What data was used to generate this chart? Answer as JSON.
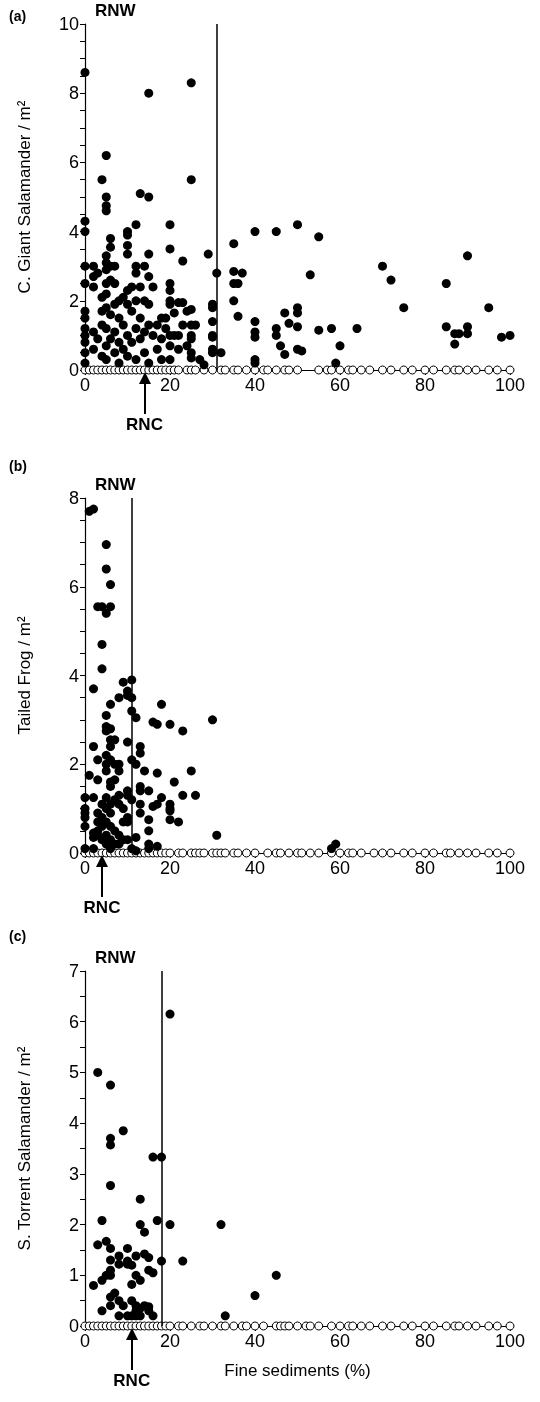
{
  "chart_data": [
    {
      "type": "scatter",
      "title": "(a)",
      "ylabel": "C. Giant Salamander / m²",
      "xlim": [
        0,
        100
      ],
      "xticks": [
        0,
        20,
        40,
        60,
        80,
        100
      ],
      "ylim": [
        0,
        10
      ],
      "yticks": [
        0,
        {
          "value": 0.5,
          "label": null
        },
        {
          "value": 1,
          "label": null
        },
        {
          "value": 1.5,
          "label": null
        },
        2,
        {
          "value": 2.5,
          "label": null
        },
        {
          "value": 3,
          "label": null
        },
        {
          "value": 3.5,
          "label": null
        },
        4,
        {
          "value": 4.5,
          "label": null
        },
        {
          "value": 5,
          "label": null
        },
        {
          "value": 5.5,
          "label": null
        },
        6,
        {
          "value": 6.5,
          "label": null
        },
        {
          "value": 7,
          "label": null
        },
        {
          "value": 7.5,
          "label": null
        },
        8,
        {
          "value": 8.5,
          "label": null
        },
        {
          "value": 9,
          "label": null
        },
        {
          "value": 9.5,
          "label": null
        },
        10
      ],
      "marker": "circle",
      "grid": false,
      "ref_lines": [
        {
          "axis": "x",
          "value": 31,
          "label": "RNW",
          "color": "#000000",
          "line_style": "solid"
        }
      ],
      "annotations": [
        {
          "text": "RNC",
          "x": 14,
          "y": 0
        }
      ],
      "series": [
        {
          "color": "#ffffff",
          "x": [
            0,
            1,
            2,
            3,
            4,
            5,
            6,
            7,
            8,
            9,
            10,
            11,
            12,
            13,
            14,
            15,
            16,
            17,
            18,
            19,
            20,
            21,
            22,
            24,
            25,
            26,
            28,
            30,
            32,
            33,
            35,
            36,
            38,
            40,
            42,
            43,
            45,
            47,
            48,
            50,
            55,
            57,
            58,
            60,
            62,
            63,
            65,
            67,
            70,
            72,
            75,
            77,
            80,
            82,
            85,
            87,
            88,
            90,
            92,
            95,
            97,
            100
          ],
          "values": [
            0,
            0,
            0,
            0,
            0,
            0,
            0,
            0,
            0,
            0,
            0,
            0,
            0,
            0,
            0,
            0,
            0,
            0,
            0,
            0,
            0,
            0,
            0,
            0,
            0,
            0,
            0,
            0,
            0,
            0,
            0,
            0,
            0,
            0,
            0,
            0,
            0,
            0,
            0,
            0,
            0,
            0,
            0,
            0,
            0,
            0,
            0,
            0,
            0,
            0,
            0,
            0,
            0,
            0,
            0,
            0,
            0,
            0,
            0,
            0,
            0,
            0
          ]
        },
        {
          "color": "#000000",
          "x": [
            0,
            15,
            25,
            25,
            5,
            4,
            5,
            5,
            5,
            13,
            15,
            0,
            0,
            10,
            10,
            10,
            12,
            20,
            20,
            6,
            6,
            15,
            23,
            29,
            31,
            35,
            35,
            37,
            35,
            36,
            35,
            36,
            40,
            45,
            50,
            55,
            53,
            40,
            40,
            40,
            40,
            40,
            45,
            45,
            46,
            47,
            47,
            48,
            50,
            50,
            50,
            50,
            51,
            55,
            58,
            60,
            59,
            64,
            70,
            72,
            75,
            85,
            85,
            87,
            87,
            88,
            90,
            90,
            90,
            95,
            98,
            100,
            30,
            30,
            30,
            30,
            30,
            30,
            30,
            32,
            23,
            25,
            20,
            20,
            20,
            20,
            21,
            23,
            25,
            26,
            25,
            25,
            22,
            27,
            28,
            25,
            25,
            0,
            0,
            0,
            0,
            0,
            0,
            0,
            0,
            0,
            2,
            2,
            2,
            2,
            2,
            3,
            3,
            4,
            4,
            4,
            4,
            5,
            5,
            5,
            5,
            5,
            5,
            5,
            5,
            5,
            6,
            6,
            6,
            6,
            7,
            7,
            7,
            7,
            7,
            8,
            8,
            8,
            8,
            9,
            9,
            9,
            10,
            10,
            10,
            10,
            10,
            11,
            11,
            11,
            12,
            12,
            12,
            12,
            12,
            13,
            13,
            13,
            14,
            14,
            14,
            14,
            15,
            15,
            15,
            15,
            16,
            16,
            17,
            17,
            18,
            18,
            18,
            19,
            19,
            20,
            20,
            20,
            21,
            22,
            22,
            24,
            24
          ],
          "values": [
            8.6,
            8.0,
            8.3,
            5.5,
            6.2,
            5.5,
            5.0,
            4.75,
            4.6,
            5.1,
            5.0,
            4.3,
            4.0,
            4.0,
            3.9,
            3.6,
            4.2,
            4.2,
            3.5,
            3.8,
            3.55,
            3.35,
            3.15,
            3.35,
            2.8,
            3.65,
            2.85,
            2.8,
            2.5,
            2.5,
            2.0,
            1.55,
            4.0,
            4.0,
            4.2,
            3.85,
            2.75,
            1.4,
            1.1,
            0.95,
            0.3,
            0.2,
            1.2,
            1.0,
            0.7,
            1.65,
            0.45,
            1.35,
            1.8,
            1.65,
            1.25,
            0.6,
            0.55,
            1.15,
            1.2,
            0.7,
            0.2,
            1.2,
            3.0,
            2.6,
            1.8,
            2.5,
            1.25,
            1.05,
            0.75,
            1.05,
            3.3,
            1.25,
            1.05,
            1.8,
            0.95,
            1.0,
            1.9,
            1.8,
            1.4,
            1.0,
            0.95,
            0.6,
            0.5,
            0.5,
            1.95,
            1.75,
            2.5,
            2.3,
            2.0,
            1.9,
            1.65,
            1.3,
            1.3,
            1.3,
            1.0,
            0.9,
            1.0,
            0.3,
            0.15,
            0.5,
            0.35,
            3.0,
            2.5,
            1.7,
            1.5,
            1.2,
            1.0,
            0.8,
            0.5,
            0.2,
            3.0,
            2.7,
            2.4,
            1.1,
            0.6,
            2.8,
            0.9,
            2.1,
            1.7,
            1.3,
            0.4,
            3.3,
            3.1,
            2.9,
            2.5,
            2.2,
            1.8,
            1.2,
            0.7,
            0.3,
            3.0,
            2.6,
            1.6,
            0.9,
            3.0,
            2.5,
            1.9,
            1.1,
            0.5,
            2.0,
            1.5,
            0.8,
            0.2,
            2.1,
            1.3,
            0.6,
            3.35,
            2.3,
            1.9,
            1.0,
            0.4,
            2.4,
            1.7,
            0.8,
            2.8,
            3.0,
            2.0,
            1.2,
            0.3,
            2.4,
            1.5,
            0.9,
            3.0,
            2.0,
            1.1,
            0.5,
            2.7,
            1.9,
            1.3,
            0.2,
            2.4,
            1.0,
            1.3,
            0.6,
            1.5,
            0.9,
            0.3,
            1.5,
            1.2,
            1.0,
            0.7,
            0.3,
            1.0,
            1.95,
            0.6,
            1.7,
            0.7
          ]
        }
      ]
    },
    {
      "type": "scatter",
      "title": "(b)",
      "ylabel": "Tailed Frog / m²",
      "xlim": [
        0,
        100
      ],
      "xticks": [
        0,
        20,
        40,
        60,
        80,
        100
      ],
      "ylim": [
        0,
        8
      ],
      "yticks": [
        0,
        {
          "value": 0.5,
          "label": null
        },
        {
          "value": 1,
          "label": null
        },
        {
          "value": 1.5,
          "label": null
        },
        2,
        {
          "value": 2.5,
          "label": null
        },
        {
          "value": 3,
          "label": null
        },
        {
          "value": 3.5,
          "label": null
        },
        4,
        {
          "value": 4.5,
          "label": null
        },
        {
          "value": 5,
          "label": null
        },
        {
          "value": 5.5,
          "label": null
        },
        6,
        {
          "value": 6.5,
          "label": null
        },
        {
          "value": 7,
          "label": null
        },
        {
          "value": 7.5,
          "label": null
        },
        8
      ],
      "marker": "circle",
      "grid": false,
      "ref_lines": [
        {
          "axis": "x",
          "value": 11,
          "label": "RNW",
          "color": "#000000",
          "line_style": "solid"
        }
      ],
      "annotations": [
        {
          "text": "RNC",
          "x": 4,
          "y": 0
        }
      ],
      "series": [
        {
          "color": "#ffffff",
          "x": [
            0,
            1,
            2,
            3,
            4,
            5,
            6,
            7,
            8,
            9,
            10,
            11,
            12,
            13,
            14,
            15,
            16,
            17,
            18,
            19,
            20,
            22,
            23,
            25,
            26,
            27,
            28,
            30,
            31,
            32,
            33,
            35,
            36,
            38,
            40,
            43,
            45,
            46,
            48,
            50,
            51,
            53,
            55,
            58,
            60,
            62,
            63,
            65,
            68,
            70,
            72,
            75,
            77,
            80,
            82,
            85,
            86,
            88,
            90,
            92,
            95,
            97,
            100
          ],
          "values": [
            0,
            0,
            0,
            0,
            0,
            0,
            0,
            0,
            0,
            0,
            0,
            0,
            0,
            0,
            0,
            0,
            0,
            0,
            0,
            0,
            0,
            0,
            0,
            0,
            0,
            0,
            0,
            0,
            0,
            0,
            0,
            0,
            0,
            0,
            0,
            0,
            0,
            0,
            0,
            0,
            0,
            0,
            0,
            0,
            0,
            0,
            0,
            0,
            0,
            0,
            0,
            0,
            0,
            0,
            0,
            0,
            0,
            0,
            0,
            0,
            0,
            0,
            0
          ]
        },
        {
          "color": "#000000",
          "x": [
            1,
            2,
            5,
            5,
            6,
            3,
            4,
            5,
            6,
            4,
            4,
            2,
            9,
            10,
            10,
            11,
            11,
            11,
            12,
            8,
            6,
            5,
            5,
            6,
            5,
            6,
            7,
            6,
            2,
            3,
            5,
            5,
            6,
            7,
            8,
            8,
            10,
            11,
            12,
            13,
            13,
            14,
            1,
            3,
            5,
            6,
            7,
            6,
            0,
            0,
            0,
            0,
            0,
            0,
            2,
            2,
            2,
            2,
            3,
            3,
            3,
            3,
            4,
            4,
            4,
            4,
            5,
            5,
            5,
            5,
            5,
            6,
            6,
            6,
            6,
            6,
            7,
            7,
            7,
            8,
            8,
            8,
            8,
            9,
            9,
            9,
            10,
            10,
            10,
            10,
            10,
            11,
            11,
            12,
            12,
            13,
            13,
            13,
            13,
            15,
            15,
            15,
            15,
            15,
            16,
            17,
            17,
            17,
            17,
            18,
            16,
            18,
            20,
            20,
            20,
            20,
            20,
            21,
            22,
            23,
            23,
            25,
            26,
            30,
            31,
            58,
            59
          ],
          "values": [
            7.7,
            7.75,
            6.95,
            6.4,
            6.05,
            5.55,
            5.55,
            5.4,
            5.55,
            4.7,
            4.15,
            3.7,
            3.85,
            3.65,
            3.55,
            3.9,
            3.5,
            3.2,
            3.05,
            3.5,
            3.35,
            3.1,
            2.85,
            2.8,
            2.75,
            2.55,
            2.55,
            2.4,
            2.4,
            2.1,
            2.2,
            2.0,
            2.1,
            2.0,
            2.0,
            1.85,
            2.5,
            2.1,
            2.0,
            2.4,
            2.25,
            1.85,
            1.75,
            1.65,
            1.85,
            1.6,
            1.65,
            1.5,
            1.25,
            1.0,
            0.9,
            0.8,
            0.6,
            0.1,
            1.25,
            0.45,
            0.35,
            0.1,
            0.9,
            0.7,
            0.5,
            0.4,
            1.1,
            0.8,
            0.6,
            0.3,
            1.25,
            1.0,
            0.7,
            0.4,
            0.2,
            1.1,
            0.9,
            0.6,
            0.3,
            0.1,
            1.2,
            0.5,
            0.2,
            1.3,
            1.1,
            0.4,
            0.2,
            1.0,
            0.7,
            0.3,
            1.4,
            1.3,
            0.8,
            0.7,
            0.3,
            1.2,
            0.1,
            0.35,
            0.05,
            1.5,
            1.4,
            1.1,
            0.9,
            1.4,
            0.75,
            0.5,
            0.2,
            0.1,
            2.95,
            2.9,
            1.8,
            0.15,
            1.1,
            1.25,
            1.05,
            3.35,
            2.9,
            1.1,
            1.0,
            0.95,
            0.75,
            1.6,
            0.7,
            2.75,
            1.3,
            1.85,
            1.3,
            3.0,
            0.4,
            0.1,
            0.2
          ]
        }
      ]
    },
    {
      "type": "scatter",
      "title": "(c)",
      "xlabel": "Fine sediments (%)",
      "ylabel": "S. Torrent Salamander / m²",
      "xlim": [
        0,
        100
      ],
      "xticks": [
        0,
        20,
        40,
        60,
        80,
        100
      ],
      "ylim": [
        0,
        7
      ],
      "yticks": [
        0,
        {
          "value": 0.5,
          "label": null
        },
        1,
        {
          "value": 1.5,
          "label": null
        },
        2,
        {
          "value": 2.5,
          "label": null
        },
        3,
        {
          "value": 3.5,
          "label": null
        },
        4,
        {
          "value": 4.5,
          "label": null
        },
        5,
        {
          "value": 5.5,
          "label": null
        },
        6,
        {
          "value": 6.5,
          "label": null
        },
        7
      ],
      "marker": "circle",
      "grid": false,
      "ref_lines": [
        {
          "axis": "x",
          "value": 18,
          "label": "RNW",
          "color": "#000000",
          "line_style": "solid"
        }
      ],
      "annotations": [
        {
          "text": "RNC",
          "x": 11,
          "y": 0
        }
      ],
      "series": [
        {
          "color": "#ffffff",
          "x": [
            0,
            1,
            2,
            3,
            4,
            5,
            6,
            7,
            8,
            9,
            10,
            11,
            12,
            13,
            14,
            15,
            16,
            17,
            18,
            19,
            20,
            22,
            23,
            25,
            27,
            28,
            30,
            32,
            33,
            35,
            37,
            38,
            40,
            42,
            45,
            46,
            47,
            48,
            50,
            52,
            53,
            55,
            58,
            60,
            62,
            63,
            65,
            67,
            70,
            72,
            75,
            77,
            80,
            82,
            85,
            87,
            88,
            90,
            92,
            95,
            97,
            100
          ],
          "values": [
            0,
            0,
            0,
            0,
            0,
            0,
            0,
            0,
            0,
            0,
            0,
            0,
            0,
            0,
            0,
            0,
            0,
            0,
            0,
            0,
            0,
            0,
            0,
            0,
            0,
            0,
            0,
            0,
            0,
            0,
            0,
            0,
            0,
            0,
            0,
            0,
            0,
            0,
            0,
            0,
            0,
            0,
            0,
            0,
            0,
            0,
            0,
            0,
            0,
            0,
            0,
            0,
            0,
            0,
            0,
            0,
            0,
            0,
            0,
            0,
            0,
            0
          ]
        },
        {
          "color": "#000000",
          "x": [
            3,
            6,
            6,
            6,
            9,
            6,
            16,
            18,
            20,
            13,
            4,
            13,
            14,
            17,
            20,
            32,
            18,
            23,
            45,
            40,
            33,
            3,
            5,
            6,
            6,
            6,
            6,
            5,
            4,
            2,
            4,
            6,
            7,
            6,
            8,
            8,
            8,
            9,
            8,
            10,
            10,
            11,
            10,
            11,
            11,
            12,
            12,
            13,
            12,
            13,
            12,
            10,
            11,
            12,
            13,
            14,
            15,
            15,
            16,
            14,
            15,
            15,
            16
          ],
          "values": [
            5.0,
            4.75,
            3.7,
            3.57,
            3.85,
            2.77,
            3.33,
            3.33,
            6.15,
            2.5,
            2.08,
            2.0,
            1.85,
            2.08,
            2.0,
            2.0,
            1.28,
            1.28,
            1.0,
            0.6,
            0.2,
            1.6,
            1.67,
            1.53,
            1.3,
            1.1,
            1.0,
            1.0,
            0.9,
            0.8,
            0.3,
            0.57,
            0.65,
            0.4,
            1.38,
            1.22,
            0.5,
            0.4,
            0.2,
            1.53,
            1.28,
            1.2,
            1.22,
            0.82,
            0.5,
            1.38,
            1.0,
            0.9,
            0.4,
            0.35,
            0.3,
            0.2,
            0.2,
            0.2,
            0.2,
            1.42,
            1.35,
            1.1,
            1.05,
            0.4,
            0.38,
            0.3,
            0.2
          ]
        }
      ]
    }
  ]
}
